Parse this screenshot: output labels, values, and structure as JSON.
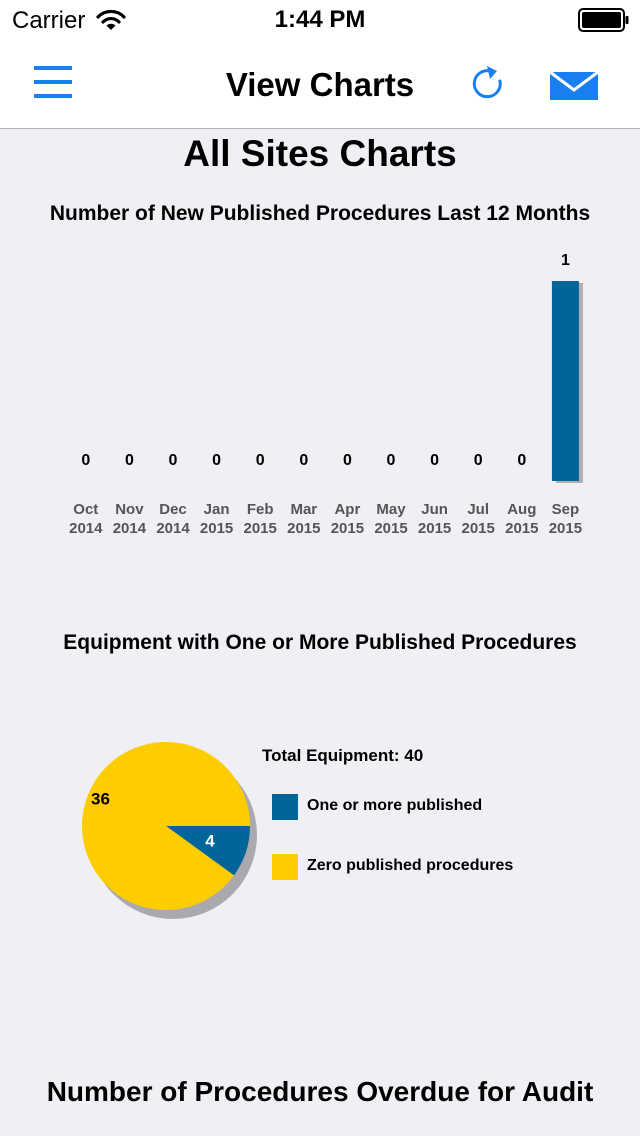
{
  "status_bar": {
    "carrier": "Carrier",
    "time": "1:44 PM"
  },
  "nav": {
    "title": "View Charts",
    "menu_icon": "hamburger-icon",
    "refresh_icon": "refresh-icon",
    "mail_icon": "mail-icon",
    "accent_color": "#1a7ff0"
  },
  "page": {
    "title": "All Sites Charts"
  },
  "chart_data": [
    {
      "type": "bar",
      "title": "Number of New Published Procedures Last 12 Months",
      "categories": [
        [
          "Oct",
          "2014"
        ],
        [
          "Nov",
          "2014"
        ],
        [
          "Dec",
          "2014"
        ],
        [
          "Jan",
          "2015"
        ],
        [
          "Feb",
          "2015"
        ],
        [
          "Mar",
          "2015"
        ],
        [
          "Apr",
          "2015"
        ],
        [
          "May",
          "2015"
        ],
        [
          "Jun",
          "2015"
        ],
        [
          "Jul",
          "2015"
        ],
        [
          "Aug",
          "2015"
        ],
        [
          "Sep",
          "2015"
        ]
      ],
      "values": [
        0,
        0,
        0,
        0,
        0,
        0,
        0,
        0,
        0,
        0,
        0,
        1
      ],
      "ylim": [
        0,
        1
      ],
      "color": "#006699",
      "grid": false
    },
    {
      "type": "pie",
      "title": "Equipment with One or More Published Procedures",
      "total_label": "Total Equipment: 40",
      "slices": [
        {
          "name": "One or more published",
          "value": 4,
          "color": "#006699"
        },
        {
          "name": "Zero published procedures",
          "value": 36,
          "color": "#ffcc00"
        }
      ],
      "legend_position": "right"
    }
  ],
  "bottom": {
    "title": "Number of Procedures Overdue for Audit"
  }
}
